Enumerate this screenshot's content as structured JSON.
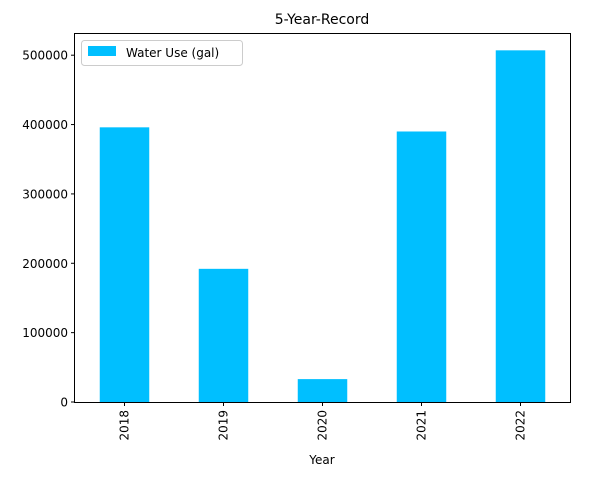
{
  "chart_data": {
    "type": "bar",
    "title": "5-Year-Record",
    "xlabel": "Year",
    "ylabel": "",
    "categories": [
      "2018",
      "2019",
      "2020",
      "2021",
      "2022"
    ],
    "series": [
      {
        "name": "Water Use (gal)",
        "color": "#00bfff",
        "values": [
          396000,
          192000,
          33000,
          390000,
          507000
        ]
      }
    ],
    "ylim": [
      0,
      532000
    ],
    "yticks": [
      0,
      100000,
      200000,
      300000,
      400000,
      500000
    ],
    "ytick_labels": [
      "0",
      "100000",
      "200000",
      "300000",
      "400000",
      "500000"
    ],
    "xtick_rotation": "vertical",
    "legend": "top-left",
    "grid": false
  }
}
